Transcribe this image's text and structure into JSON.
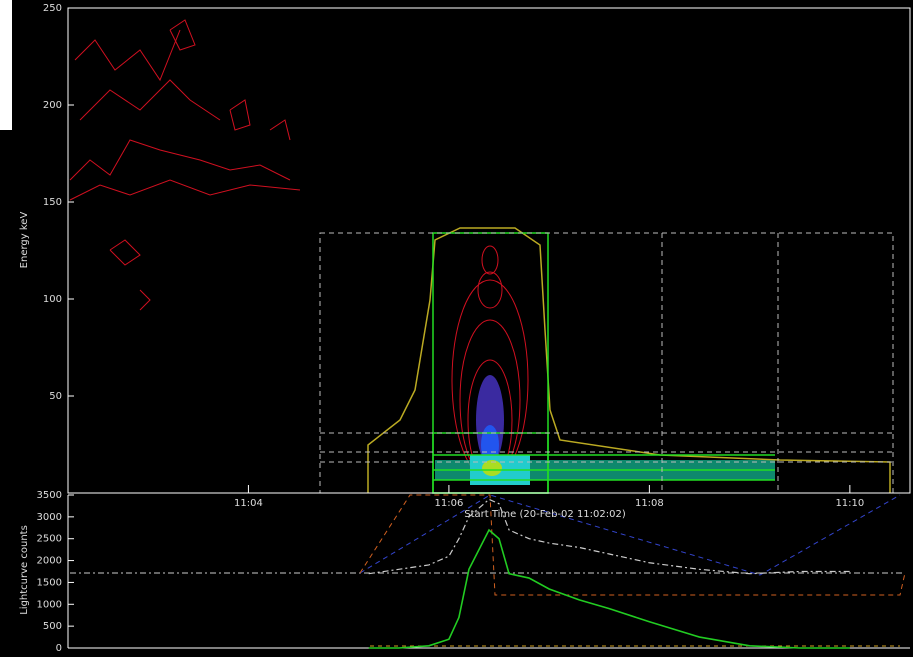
{
  "chart_data": [
    {
      "type": "spectrogram",
      "y_label": "Energy keV",
      "x_label": "Start Time (20-Feb-02 11:02:02)",
      "xlim": [
        2.2,
        10.6
      ],
      "xticks": [
        {
          "value": 4,
          "label": "11:04"
        },
        {
          "value": 6,
          "label": "11:06"
        },
        {
          "value": 8,
          "label": "11:08"
        },
        {
          "value": 10,
          "label": "11:10"
        }
      ],
      "ylim": [
        0,
        250
      ],
      "yticks": [
        50,
        100,
        150,
        200,
        250
      ]
    },
    {
      "type": "line",
      "y_label": "Lightcurve counts",
      "xlim": [
        2.2,
        10.6
      ],
      "ylim": [
        0,
        3500
      ],
      "yticks": [
        0,
        500,
        1000,
        1500,
        2000,
        2500,
        3000,
        3500
      ],
      "x": [
        5.2,
        5.5,
        5.8,
        6.0,
        6.1,
        6.2,
        6.4,
        6.5,
        6.6,
        6.8,
        7.0,
        7.3,
        7.6,
        8.0,
        8.5,
        9.0,
        9.5,
        10.0
      ],
      "series": [
        {
          "color": "#22cc22",
          "values": [
            0,
            0,
            50,
            200,
            700,
            1800,
            2700,
            2500,
            1700,
            1600,
            1350,
            1100,
            900,
            600,
            250,
            50,
            0,
            0
          ]
        },
        {
          "color": "#cccccc",
          "values": [
            1700,
            1800,
            1900,
            2100,
            2500,
            3000,
            3400,
            3300,
            2700,
            2500,
            2400,
            2300,
            2150,
            1950,
            1800,
            1700,
            1750,
            1750
          ]
        }
      ]
    }
  ]
}
